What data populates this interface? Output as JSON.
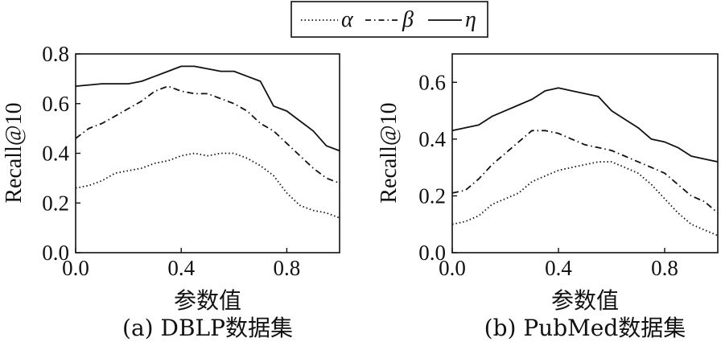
{
  "legend": [
    {
      "symbol": "α",
      "style": "dotted"
    },
    {
      "symbol": "β",
      "style": "dashdot"
    },
    {
      "symbol": "η",
      "style": "solid"
    }
  ],
  "chart_data": [
    {
      "type": "line",
      "caption": "(a) DBLP数据集",
      "xlabel": "参数值",
      "ylabel": "Recall@10",
      "xlim": [
        0,
        1
      ],
      "ylim": [
        0,
        0.8
      ],
      "xticks": [
        "0.0",
        "0.4",
        "0.8"
      ],
      "xtick_values": [
        0,
        0.4,
        0.8
      ],
      "yticks": [
        "0.0",
        "0.2",
        "0.4",
        "0.6",
        "0.8"
      ],
      "ytick_values": [
        0,
        0.2,
        0.4,
        0.6,
        0.8
      ],
      "series": [
        {
          "name": "α",
          "style": "dotted",
          "x": [
            0,
            0.05,
            0.1,
            0.15,
            0.2,
            0.25,
            0.3,
            0.35,
            0.4,
            0.45,
            0.5,
            0.55,
            0.6,
            0.65,
            0.7,
            0.75,
            0.8,
            0.85,
            0.9,
            0.95,
            1.0
          ],
          "y": [
            0.26,
            0.27,
            0.29,
            0.32,
            0.33,
            0.34,
            0.36,
            0.37,
            0.39,
            0.4,
            0.39,
            0.4,
            0.4,
            0.38,
            0.35,
            0.31,
            0.24,
            0.19,
            0.17,
            0.16,
            0.14
          ]
        },
        {
          "name": "β",
          "style": "dashdot",
          "x": [
            0,
            0.05,
            0.1,
            0.15,
            0.2,
            0.25,
            0.3,
            0.35,
            0.4,
            0.45,
            0.5,
            0.55,
            0.6,
            0.65,
            0.7,
            0.75,
            0.8,
            0.85,
            0.9,
            0.95,
            1.0
          ],
          "y": [
            0.46,
            0.5,
            0.52,
            0.55,
            0.58,
            0.61,
            0.65,
            0.67,
            0.65,
            0.64,
            0.64,
            0.62,
            0.6,
            0.57,
            0.52,
            0.49,
            0.44,
            0.39,
            0.34,
            0.3,
            0.28
          ]
        },
        {
          "name": "η",
          "style": "solid",
          "x": [
            0,
            0.05,
            0.1,
            0.15,
            0.2,
            0.25,
            0.3,
            0.35,
            0.4,
            0.45,
            0.5,
            0.55,
            0.6,
            0.65,
            0.7,
            0.75,
            0.8,
            0.85,
            0.9,
            0.95,
            1.0
          ],
          "y": [
            0.67,
            0.675,
            0.68,
            0.68,
            0.68,
            0.69,
            0.71,
            0.73,
            0.75,
            0.75,
            0.74,
            0.73,
            0.73,
            0.71,
            0.69,
            0.59,
            0.57,
            0.53,
            0.49,
            0.43,
            0.41
          ]
        }
      ]
    },
    {
      "type": "line",
      "caption": "(b) PubMed数据集",
      "xlabel": "参数值",
      "ylabel": "Recall@10",
      "xlim": [
        0,
        1
      ],
      "ylim": [
        0,
        0.7
      ],
      "xticks": [
        "0.0",
        "0.4",
        "0.8"
      ],
      "xtick_values": [
        0,
        0.4,
        0.8
      ],
      "yticks": [
        "0.0",
        "0.2",
        "0.4",
        "0.6"
      ],
      "ytick_values": [
        0,
        0.2,
        0.4,
        0.6
      ],
      "series": [
        {
          "name": "α",
          "style": "dotted",
          "x": [
            0,
            0.05,
            0.1,
            0.15,
            0.2,
            0.25,
            0.3,
            0.35,
            0.4,
            0.45,
            0.5,
            0.55,
            0.6,
            0.65,
            0.7,
            0.75,
            0.8,
            0.85,
            0.9,
            0.95,
            1.0
          ],
          "y": [
            0.1,
            0.11,
            0.13,
            0.17,
            0.19,
            0.21,
            0.25,
            0.27,
            0.29,
            0.3,
            0.31,
            0.32,
            0.32,
            0.3,
            0.28,
            0.24,
            0.19,
            0.14,
            0.1,
            0.08,
            0.06
          ]
        },
        {
          "name": "β",
          "style": "dashdot",
          "x": [
            0,
            0.05,
            0.1,
            0.15,
            0.2,
            0.25,
            0.3,
            0.35,
            0.4,
            0.45,
            0.5,
            0.55,
            0.6,
            0.65,
            0.7,
            0.75,
            0.8,
            0.85,
            0.9,
            0.95,
            1.0
          ],
          "y": [
            0.21,
            0.22,
            0.26,
            0.31,
            0.35,
            0.39,
            0.43,
            0.43,
            0.42,
            0.4,
            0.38,
            0.37,
            0.36,
            0.34,
            0.32,
            0.3,
            0.28,
            0.24,
            0.2,
            0.18,
            0.14
          ]
        },
        {
          "name": "η",
          "style": "solid",
          "x": [
            0,
            0.05,
            0.1,
            0.15,
            0.2,
            0.25,
            0.3,
            0.35,
            0.4,
            0.45,
            0.5,
            0.55,
            0.6,
            0.65,
            0.7,
            0.75,
            0.8,
            0.85,
            0.9,
            0.95,
            1.0
          ],
          "y": [
            0.43,
            0.44,
            0.45,
            0.48,
            0.5,
            0.52,
            0.54,
            0.57,
            0.58,
            0.57,
            0.56,
            0.55,
            0.5,
            0.47,
            0.44,
            0.4,
            0.39,
            0.37,
            0.34,
            0.33,
            0.32
          ]
        }
      ]
    }
  ]
}
